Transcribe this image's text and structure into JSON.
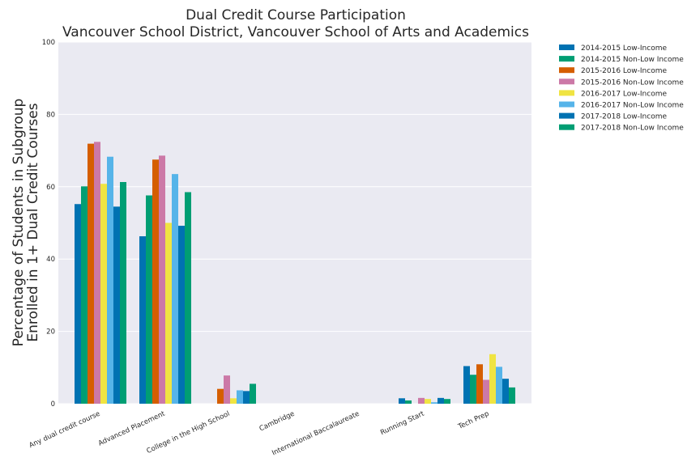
{
  "chart_data": {
    "type": "bar",
    "title_line1": "Dual Credit Course Participation",
    "title_line2": "Vancouver School District, Vancouver School of Arts and Academics",
    "ylabel_line1": "Percentage of Students in Subgroup",
    "ylabel_line2": "Enrolled in 1+ Dual Credit Courses",
    "xlabel": "",
    "ylim": [
      0,
      100
    ],
    "yticks": [
      "0",
      "20",
      "40",
      "60",
      "80",
      "100"
    ],
    "grid": true,
    "legend_position": "outside-top-right",
    "categories": [
      "Any dual credit course",
      "Advanced Placement",
      "College in the High School",
      "Cambridge",
      "International Baccalaureate",
      "Running Start",
      "Tech Prep"
    ],
    "series": [
      {
        "name": "2014-2015 Low-Income",
        "color": "#0072b2",
        "values": [
          55.2,
          46.3,
          0,
          0,
          0,
          1.5,
          10.4
        ]
      },
      {
        "name": "2014-2015 Non-Low Income",
        "color": "#009e73",
        "values": [
          60.1,
          57.6,
          0,
          0,
          0,
          0.9,
          8.0
        ]
      },
      {
        "name": "2015-2016 Low-Income",
        "color": "#d55e00",
        "values": [
          71.9,
          67.5,
          4.1,
          0,
          0,
          0,
          10.9
        ]
      },
      {
        "name": "2015-2016 Non-Low Income",
        "color": "#cc79a7",
        "values": [
          72.4,
          68.6,
          7.8,
          0,
          0,
          1.6,
          6.6
        ]
      },
      {
        "name": "2016-2017 Low-Income",
        "color": "#f0e442",
        "values": [
          60.8,
          50.0,
          1.5,
          0,
          0,
          1.3,
          13.7
        ]
      },
      {
        "name": "2016-2017 Non-Low Income",
        "color": "#56b4e9",
        "values": [
          68.3,
          63.5,
          3.7,
          0,
          0,
          0.4,
          10.2
        ]
      },
      {
        "name": "2017-2018 Low-Income",
        "color": "#0072b2",
        "values": [
          54.5,
          49.2,
          3.5,
          0,
          0,
          1.6,
          6.9
        ]
      },
      {
        "name": "2017-2018 Non-Low Income",
        "color": "#009e73",
        "values": [
          61.3,
          58.5,
          5.5,
          0,
          0,
          1.3,
          4.5
        ]
      }
    ]
  }
}
